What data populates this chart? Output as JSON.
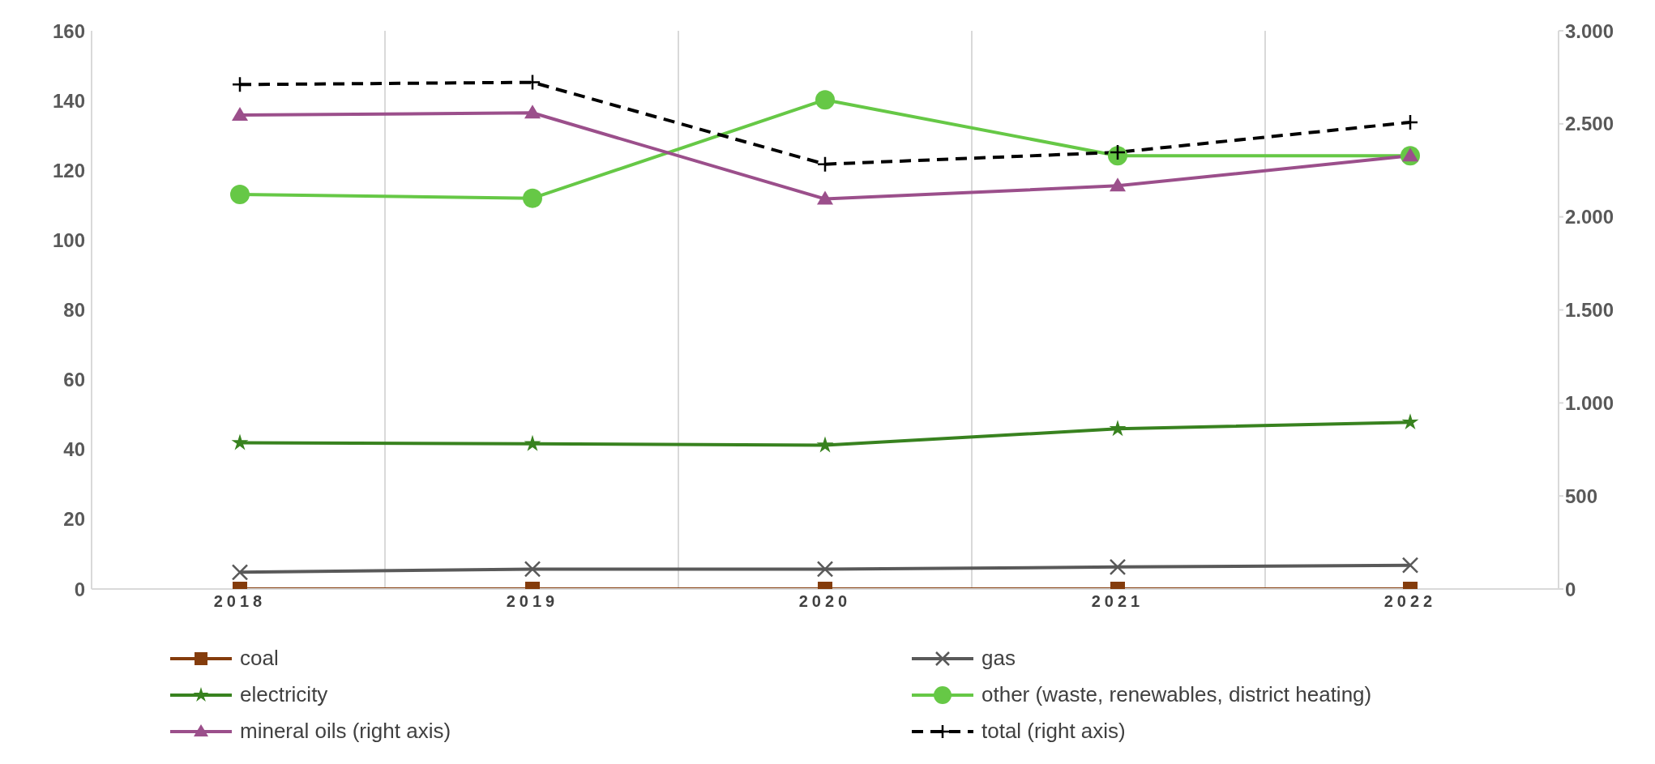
{
  "chart_data": {
    "type": "line",
    "categories": [
      "2018",
      "2019",
      "2020",
      "2021",
      "2022"
    ],
    "ylim": [
      0,
      160
    ],
    "yticks": [
      0,
      20,
      40,
      60,
      80,
      100,
      120,
      140,
      160
    ],
    "y2lim": [
      0,
      3000
    ],
    "y2ticks": [
      {
        "value": 0,
        "label": "0"
      },
      {
        "value": 500,
        "label": "500"
      },
      {
        "value": 1000,
        "label": "1.000"
      },
      {
        "value": 1500,
        "label": "1.500"
      },
      {
        "value": 2000,
        "label": "2.000"
      },
      {
        "value": 2500,
        "label": "2.500"
      },
      {
        "value": 3000,
        "label": "3.000"
      }
    ],
    "grid": "x",
    "legend": "bottom",
    "series": [
      {
        "name": "coal",
        "color": "#843c0c",
        "marker": "square",
        "values": [
          0,
          0,
          0,
          0,
          0
        ]
      },
      {
        "name": "gas",
        "color": "#595959",
        "marker": "cross",
        "values": [
          4.8,
          5.7,
          5.7,
          6.3,
          6.8
        ]
      },
      {
        "name": "electricity",
        "color": "#38821f",
        "marker": "star",
        "values": [
          41.9,
          41.6,
          41.2,
          45.9,
          47.8
        ]
      },
      {
        "name": "other (waste, renewables, district heating)",
        "color": "#66c846",
        "marker": "circle",
        "values": [
          113.1,
          112,
          140.2,
          124.2,
          124.2
        ]
      },
      {
        "name": "mineral oils (right axis)",
        "color": "#9b4f8b",
        "marker": "triangle",
        "axis": "y2",
        "values": [
          2547,
          2559,
          2096,
          2167,
          2328
        ]
      },
      {
        "name": "total (right axis)",
        "color": "#000000",
        "marker": "plus",
        "line_style": "dashed",
        "axis": "y2",
        "values": [
          2711,
          2723,
          2283,
          2347,
          2508
        ]
      }
    ]
  }
}
